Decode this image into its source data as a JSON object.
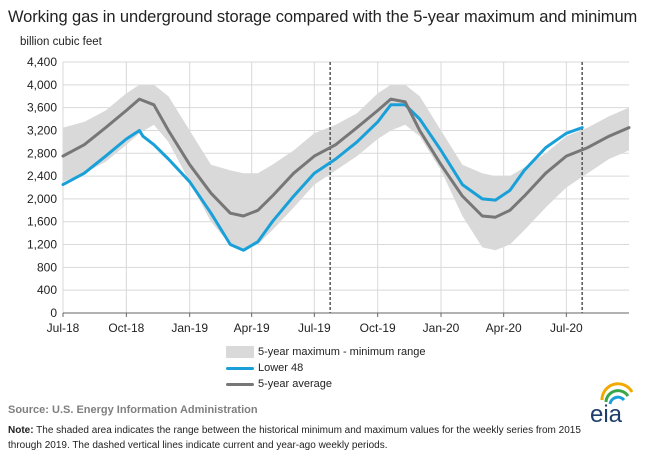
{
  "title": "Working gas in underground storage compared with the 5-year maximum and minimum",
  "ylabel": "billion cubic feet",
  "source": "Source:  U.S. Energy Information Administration",
  "note_label": "Note:",
  "note": "The shaded area indicates the range between the historical minimum and maximum values for the weekly series from 2015 through 2019. The dashed vertical lines indicate current and year-ago weekly periods.",
  "logo_text": "eia",
  "legend": [
    {
      "label": "5-year maximum - minimum range",
      "kind": "band",
      "color": "#d9d9d9"
    },
    {
      "label": "Lower 48",
      "kind": "line",
      "color": "#1aa0d8"
    },
    {
      "label": "5-year average",
      "kind": "line",
      "color": "#777777"
    }
  ],
  "chart_data": {
    "type": "area",
    "title": "Working gas in underground storage compared with the 5-year maximum and minimum",
    "ylabel": "billion cubic feet",
    "ylim": [
      0,
      4400
    ],
    "yticks": [
      0,
      400,
      800,
      1200,
      1600,
      2000,
      2400,
      2800,
      3200,
      3600,
      4000,
      4400
    ],
    "ytick_labels": [
      "0",
      "400",
      "800",
      "1,200",
      "1,600",
      "2,000",
      "2,400",
      "2,800",
      "3,200",
      "3,600",
      "4,000",
      "4,400"
    ],
    "x_tick_labels": [
      "Jul-18",
      "Oct-18",
      "Jan-19",
      "Apr-19",
      "Jul-19",
      "Oct-19",
      "Jan-20",
      "Apr-20",
      "Jul-20"
    ],
    "x_ticks": [
      "2018-07-01",
      "2018-10-01",
      "2019-01-01",
      "2019-04-01",
      "2019-07-01",
      "2019-10-01",
      "2020-01-01",
      "2020-04-01",
      "2020-07-01"
    ],
    "xlim": [
      "2018-07-01",
      "2020-09-30"
    ],
    "grid": true,
    "legend_position": "bottom",
    "vlines": [
      {
        "date": "2019-07-24",
        "style": "dashed"
      },
      {
        "date": "2020-07-24",
        "style": "dashed"
      }
    ],
    "series": [
      {
        "name": "5-year maximum - minimum range",
        "kind": "band",
        "color": "#d9d9d9",
        "x": [
          "2018-07-01",
          "2018-08-01",
          "2018-09-01",
          "2018-10-01",
          "2018-10-20",
          "2018-11-10",
          "2018-12-01",
          "2019-01-01",
          "2019-02-01",
          "2019-03-01",
          "2019-03-20",
          "2019-04-10",
          "2019-05-01",
          "2019-06-01",
          "2019-07-01",
          "2019-08-01",
          "2019-09-01",
          "2019-10-01",
          "2019-10-20",
          "2019-11-10",
          "2019-12-01",
          "2020-01-01",
          "2020-02-01",
          "2020-03-01",
          "2020-03-20",
          "2020-04-10",
          "2020-05-01",
          "2020-06-01",
          "2020-07-01",
          "2020-08-01",
          "2020-09-01",
          "2020-09-30"
        ],
        "low": [
          2300,
          2450,
          2650,
          2950,
          3150,
          3300,
          3000,
          2300,
          1600,
          1200,
          1100,
          1200,
          1450,
          1850,
          2250,
          2500,
          2750,
          3050,
          3200,
          3300,
          3100,
          2500,
          1700,
          1150,
          1100,
          1200,
          1450,
          1850,
          2200,
          2450,
          2700,
          2850
        ],
        "high": [
          3250,
          3350,
          3550,
          3850,
          4000,
          4000,
          3800,
          3200,
          2600,
          2500,
          2450,
          2450,
          2600,
          2850,
          3150,
          3300,
          3500,
          3850,
          4000,
          4000,
          3800,
          3200,
          2600,
          2450,
          2400,
          2400,
          2550,
          2800,
          3100,
          3250,
          3450,
          3600
        ]
      },
      {
        "name": "Lower 48",
        "kind": "line",
        "color": "#1aa0d8",
        "x": [
          "2018-07-01",
          "2018-08-01",
          "2018-09-01",
          "2018-10-01",
          "2018-10-20",
          "2018-10-25",
          "2018-11-10",
          "2018-12-01",
          "2019-01-01",
          "2019-02-01",
          "2019-03-01",
          "2019-03-20",
          "2019-04-10",
          "2019-05-01",
          "2019-06-01",
          "2019-07-01",
          "2019-08-01",
          "2019-09-01",
          "2019-10-01",
          "2019-10-20",
          "2019-11-10",
          "2019-12-01",
          "2020-01-01",
          "2020-02-01",
          "2020-03-01",
          "2020-03-20",
          "2020-04-10",
          "2020-05-01",
          "2020-06-01",
          "2020-07-01",
          "2020-07-24"
        ],
        "values": [
          2250,
          2450,
          2750,
          3050,
          3200,
          3100,
          2950,
          2700,
          2300,
          1750,
          1200,
          1100,
          1250,
          1600,
          2050,
          2450,
          2700,
          3000,
          3350,
          3650,
          3650,
          3400,
          2850,
          2250,
          2000,
          1980,
          2150,
          2500,
          2900,
          3150,
          3250
        ]
      },
      {
        "name": "5-year average",
        "kind": "line",
        "color": "#777777",
        "x": [
          "2018-07-01",
          "2018-08-01",
          "2018-09-01",
          "2018-10-01",
          "2018-10-20",
          "2018-11-10",
          "2018-12-01",
          "2019-01-01",
          "2019-02-01",
          "2019-03-01",
          "2019-03-20",
          "2019-04-10",
          "2019-05-01",
          "2019-06-01",
          "2019-07-01",
          "2019-08-01",
          "2019-09-01",
          "2019-10-01",
          "2019-10-20",
          "2019-11-10",
          "2019-12-01",
          "2020-01-01",
          "2020-02-01",
          "2020-03-01",
          "2020-03-20",
          "2020-04-10",
          "2020-05-01",
          "2020-06-01",
          "2020-07-01",
          "2020-08-01",
          "2020-09-01",
          "2020-09-30"
        ],
        "values": [
          2750,
          2950,
          3250,
          3550,
          3750,
          3650,
          3200,
          2600,
          2100,
          1750,
          1700,
          1800,
          2050,
          2450,
          2750,
          2950,
          3250,
          3550,
          3750,
          3700,
          3200,
          2600,
          2050,
          1700,
          1680,
          1800,
          2050,
          2450,
          2750,
          2900,
          3100,
          3250
        ]
      }
    ]
  }
}
